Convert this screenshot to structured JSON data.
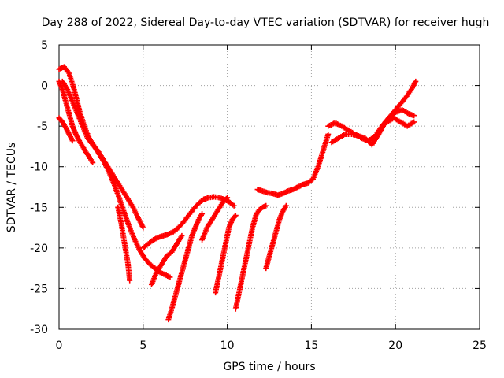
{
  "chart_data": {
    "type": "scatter",
    "title": "Day 288 of 2022, Sidereal Day-to-day VTEC variation (SDTVAR) for receiver hugh",
    "xlabel": "GPS time / hours",
    "ylabel": "SDTVAR / TECUs",
    "xlim": [
      0,
      25
    ],
    "ylim": [
      -30,
      5
    ],
    "xticks": [
      0,
      5,
      10,
      15,
      20,
      25
    ],
    "yticks": [
      5,
      0,
      -5,
      -10,
      -15,
      -20,
      -25,
      -30
    ],
    "grid": true,
    "marker": "plus",
    "color": "#ff0000",
    "series": [
      {
        "x": [
          0.0,
          0.3,
          0.6,
          0.9,
          1.2,
          1.5,
          1.8,
          2.1,
          2.4,
          2.7,
          3.0,
          3.3,
          3.6,
          3.9,
          4.2,
          4.5,
          4.8,
          5.1,
          5.4,
          5.7,
          6.0,
          6.3,
          6.6
        ],
        "y": [
          2.0,
          2.3,
          1.5,
          -0.5,
          -3.0,
          -5.0,
          -6.5,
          -7.5,
          -8.5,
          -9.5,
          -10.8,
          -12.3,
          -14.0,
          -15.8,
          -17.5,
          -19.0,
          -20.3,
          -21.3,
          -22.0,
          -22.5,
          -23.0,
          -23.3,
          -23.6
        ]
      },
      {
        "x": [
          0.0,
          0.2,
          0.4,
          0.6,
          0.8,
          1.0,
          1.2,
          1.4,
          1.6,
          1.8,
          2.0
        ],
        "y": [
          0.5,
          -0.5,
          -2.0,
          -3.5,
          -5.0,
          -6.0,
          -6.8,
          -7.5,
          -8.2,
          -8.8,
          -9.5
        ]
      },
      {
        "x": [
          0.0,
          0.2,
          0.4,
          0.6,
          0.8
        ],
        "y": [
          -4.0,
          -4.5,
          -5.2,
          -6.0,
          -6.8
        ]
      },
      {
        "x": [
          3.5,
          3.7,
          3.9,
          4.1,
          4.2
        ],
        "y": [
          -15.0,
          -17.0,
          -19.5,
          -22.0,
          -24.0
        ]
      },
      {
        "x": [
          0.2,
          0.5,
          0.8,
          1.1,
          1.4,
          1.7,
          2.0,
          2.3,
          2.6,
          2.9,
          3.2,
          3.5,
          3.8,
          4.1,
          4.4,
          4.7,
          5.0
        ],
        "y": [
          0.5,
          -0.5,
          -2.0,
          -3.5,
          -5.0,
          -6.5,
          -7.3,
          -8.0,
          -9.0,
          -10.0,
          -11.0,
          -12.0,
          -13.0,
          -14.0,
          -15.0,
          -16.3,
          -17.5
        ]
      },
      {
        "x": [
          5.0,
          5.3,
          5.6,
          5.9,
          6.2,
          6.5,
          6.8,
          7.1,
          7.4,
          7.7,
          8.0,
          8.3,
          8.6,
          8.9,
          9.2,
          9.5,
          9.8,
          10.1,
          10.4
        ],
        "y": [
          -20.0,
          -19.5,
          -19.0,
          -18.7,
          -18.5,
          -18.3,
          -18.0,
          -17.5,
          -16.8,
          -16.0,
          -15.2,
          -14.5,
          -14.0,
          -13.8,
          -13.7,
          -13.8,
          -14.0,
          -14.3,
          -14.8
        ]
      },
      {
        "x": [
          5.5,
          5.8,
          6.1,
          6.4,
          6.7,
          7.0,
          7.3
        ],
        "y": [
          -24.5,
          -23.0,
          -22.0,
          -21.0,
          -20.5,
          -19.5,
          -18.5
        ]
      },
      {
        "x": [
          6.5,
          6.7,
          6.9,
          7.1,
          7.3,
          7.5,
          7.7,
          7.9,
          8.1,
          8.3,
          8.5
        ],
        "y": [
          -28.8,
          -27.5,
          -26.0,
          -24.5,
          -23.0,
          -21.5,
          -20.0,
          -18.5,
          -17.5,
          -16.5,
          -15.8
        ]
      },
      {
        "x": [
          8.5,
          8.8,
          9.1,
          9.4,
          9.7,
          10.0
        ],
        "y": [
          -19.0,
          -17.5,
          -16.5,
          -15.5,
          -14.5,
          -13.8
        ]
      },
      {
        "x": [
          9.3,
          9.5,
          9.7,
          9.9,
          10.1,
          10.3,
          10.5
        ],
        "y": [
          -25.5,
          -23.5,
          -21.5,
          -19.5,
          -17.5,
          -16.5,
          -16.0
        ]
      },
      {
        "x": [
          10.5,
          10.7,
          10.9,
          11.1,
          11.3,
          11.5,
          11.7,
          11.9,
          12.1,
          12.3
        ],
        "y": [
          -27.5,
          -25.5,
          -23.5,
          -21.5,
          -19.5,
          -17.5,
          -16.0,
          -15.3,
          -15.0,
          -14.8
        ]
      },
      {
        "x": [
          11.8,
          12.1,
          12.4,
          12.7,
          13.0,
          13.3,
          13.6,
          13.9,
          14.2,
          14.5,
          14.8,
          15.1,
          15.4,
          15.7,
          16.0
        ],
        "y": [
          -12.8,
          -13.0,
          -13.2,
          -13.3,
          -13.5,
          -13.3,
          -13.0,
          -12.8,
          -12.5,
          -12.2,
          -12.0,
          -11.5,
          -10.0,
          -8.0,
          -6.0
        ]
      },
      {
        "x": [
          12.3,
          12.5,
          12.7,
          12.9,
          13.1,
          13.3,
          13.5
        ],
        "y": [
          -22.5,
          -21.0,
          -19.5,
          -18.0,
          -16.5,
          -15.5,
          -14.8
        ]
      },
      {
        "x": [
          16.0,
          16.4,
          16.8,
          17.2,
          17.6,
          18.0,
          18.4,
          18.8,
          19.2,
          19.6,
          20.0,
          20.4,
          20.8,
          21.1
        ],
        "y": [
          -5.0,
          -4.6,
          -5.0,
          -5.5,
          -6.0,
          -6.5,
          -6.8,
          -6.2,
          -5.0,
          -4.0,
          -3.3,
          -3.0,
          -3.5,
          -3.7
        ]
      },
      {
        "x": [
          16.2,
          16.6,
          17.0,
          17.4,
          17.8,
          18.2,
          18.6,
          19.0,
          19.4,
          19.8,
          20.2,
          20.6,
          21.0,
          21.2
        ],
        "y": [
          -7.0,
          -6.5,
          -6.0,
          -6.0,
          -6.2,
          -6.5,
          -7.3,
          -6.0,
          -4.5,
          -3.5,
          -2.5,
          -1.5,
          -0.3,
          0.5
        ]
      },
      {
        "x": [
          19.5,
          19.9,
          20.3,
          20.7,
          21.1
        ],
        "y": [
          -4.5,
          -4.0,
          -4.5,
          -5.0,
          -4.5
        ]
      }
    ]
  }
}
